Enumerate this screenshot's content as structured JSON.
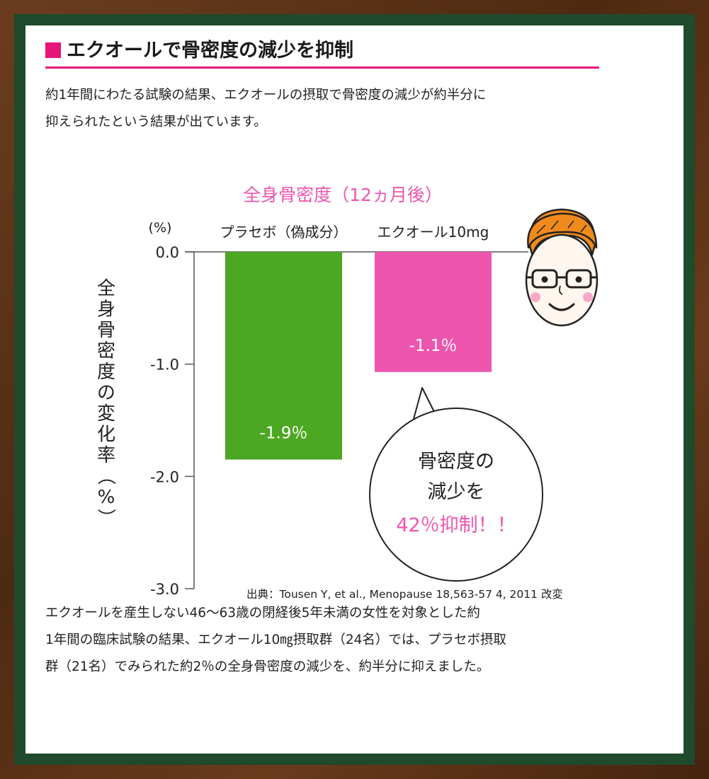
{
  "header": {
    "title": "エクオールで骨密度の減少を抑制"
  },
  "intro": {
    "line1": "約1年間にわたる試験の結果、エクオールの摂取で骨密度の減少が約半分に",
    "line2": "抑えられたという結果が出ています。"
  },
  "chart_data": {
    "type": "bar",
    "title": "全身骨密度（12ヵ月後）",
    "ylabel": "全身骨密度の変化率（%）",
    "yunit": "(%)",
    "ylim": [
      -3.0,
      0.0
    ],
    "yticks": [
      "0.0",
      "-1.0",
      "-2.0",
      "-3.0"
    ],
    "ytick_values": [
      0,
      -1,
      -2,
      -3
    ],
    "categories": [
      "プラセボ（偽成分）",
      "エクオール10mg"
    ],
    "values": [
      -1.85,
      -1.07
    ],
    "data_labels": [
      "-1.9％",
      "-1.1％"
    ],
    "colors": [
      "#4ca722",
      "#ee55ae"
    ],
    "grid": false,
    "source": "出典：Tousen Y, et al., Menopause 18,563-57 4, 2011 改変"
  },
  "callout": {
    "line1": "骨密度の",
    "line2": "減少を",
    "line3": "42％抑制！！",
    "accent_color": "#ee55ae"
  },
  "footer": {
    "line1": "エクオールを産生しない46〜63歳の閉経後5年未満の女性を対象とした約",
    "line2": "1年間の臨床試験の結果、エクオール10㎎摂取群（24名）では、プラセボ摂取",
    "line3": "群（21名）でみられた約2％の全身骨密度の減少を、約半分に抑えました。"
  }
}
